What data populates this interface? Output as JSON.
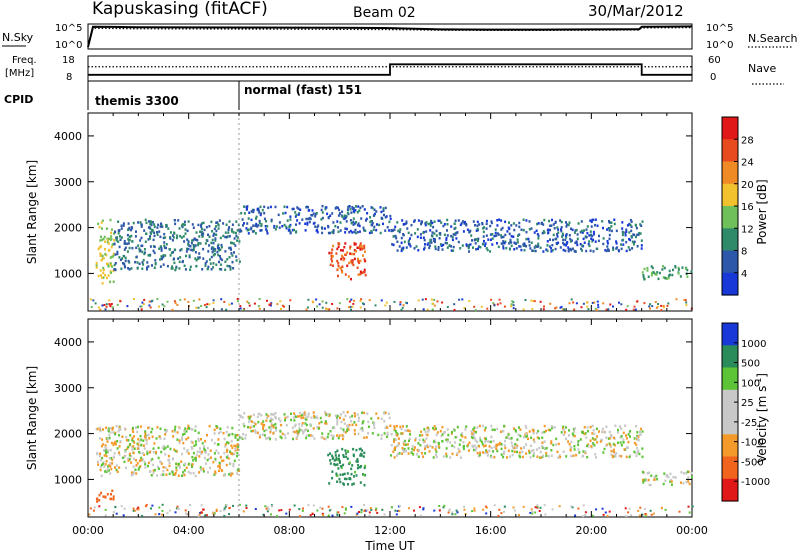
{
  "header": {
    "station": "Kapuskasing (fitACF)",
    "beam": "Beam 02",
    "date": "30/Mar/2012"
  },
  "nsky_panel": {
    "left_label": "N.Sky",
    "right_label": "N.Search",
    "left_ticks": [
      "10^5",
      "10^0"
    ],
    "right_ticks": [
      "10^5",
      "10^0"
    ]
  },
  "freq_panel": {
    "label_line1": "Freq.",
    "label_line2": "[MHz]",
    "left_ticks": [
      "18",
      "8"
    ],
    "right_ticks": [
      "60",
      "0"
    ],
    "right_label": "Nave"
  },
  "cpid_panel": {
    "label": "CPID",
    "modes": [
      {
        "name": "themis 3300",
        "start_hour": 0
      },
      {
        "name": "normal (fast) 151",
        "start_hour": 6
      }
    ]
  },
  "colors": {
    "power_scale": [
      "#1838d8",
      "#2d57a8",
      "#2f8a6a",
      "#6fbf5a",
      "#f2c12e",
      "#f08a24",
      "#e84c1e",
      "#e01818"
    ],
    "velocity_scale": [
      "#e01818",
      "#f0641e",
      "#f39a2a",
      "#c8c8c8",
      "#c8c8c8",
      "#5cc436",
      "#2a8c5a",
      "#1838d8"
    ]
  },
  "chart_data": [
    {
      "type": "line",
      "title": "N.Sky / N.Search",
      "x_unit": "hours UT",
      "x": [
        0,
        0.2,
        1,
        2,
        4,
        6,
        8,
        10,
        12,
        14,
        16,
        18,
        20,
        21.9,
        22,
        23,
        24
      ],
      "series": [
        {
          "name": "N.Sky",
          "values": [
            1,
            200000,
            180000,
            150000,
            140000,
            130000,
            120000,
            110000,
            90000,
            40000,
            35000,
            35000,
            40000,
            45000,
            200000,
            220000,
            250000
          ]
        },
        {
          "name": "N.Search",
          "values": [
            1,
            80000,
            70000,
            60000,
            55000,
            50000,
            45000,
            40000,
            35000,
            25000,
            22000,
            22000,
            25000,
            28000,
            100000,
            110000,
            120000
          ]
        }
      ]
    },
    {
      "type": "line",
      "title": "Freq. [MHz] / Nave",
      "x_unit": "hours UT",
      "ylim": [
        8,
        18
      ],
      "segments_freq": [
        {
          "x0": 0,
          "x1": 12,
          "value": 10
        },
        {
          "x0": 12,
          "x1": 22,
          "value": 15
        },
        {
          "x0": 22,
          "x1": 24,
          "value": 10
        }
      ],
      "nave_level": 35
    },
    {
      "type": "heatmap",
      "title": "Power [dB]",
      "xlabel": "Time UT",
      "ylabel": "Slant Range [km]",
      "xlim": [
        0,
        24
      ],
      "ylim": [
        180,
        4500
      ],
      "x_ticks": [
        "00:00",
        "04:00",
        "08:00",
        "12:00",
        "16:00",
        "20:00",
        "00:00"
      ],
      "y_ticks": [
        1000,
        2000,
        3000,
        4000
      ],
      "colorbar_label": "Power [dB]",
      "colorbar_ticks": [
        4,
        8,
        12,
        16,
        20,
        24,
        28
      ],
      "scatter_bands": [
        {
          "t_start": 0.3,
          "t_end": 1.0,
          "range_low": 800,
          "range_high": 2200,
          "power_db": 16
        },
        {
          "t_start": 1.0,
          "t_end": 6.0,
          "range_low": 1100,
          "range_high": 2200,
          "power_db": 8
        },
        {
          "t_start": 6.0,
          "t_end": 12.0,
          "range_low": 1900,
          "range_high": 2500,
          "power_db": 6
        },
        {
          "t_start": 9.5,
          "t_end": 11.0,
          "range_low": 900,
          "range_high": 1700,
          "power_db": 26
        },
        {
          "t_start": 12.0,
          "t_end": 22.0,
          "range_low": 1500,
          "range_high": 2200,
          "power_db": 6
        },
        {
          "t_start": 22.0,
          "t_end": 24.0,
          "range_low": 900,
          "range_high": 1200,
          "power_db": 12
        }
      ]
    },
    {
      "type": "heatmap",
      "title": "Velocity [m s-1]",
      "xlabel": "Time UT",
      "ylabel": "Slant Range [km]",
      "xlim": [
        0,
        24
      ],
      "ylim": [
        180,
        4500
      ],
      "x_ticks": [
        "00:00",
        "04:00",
        "08:00",
        "12:00",
        "16:00",
        "20:00",
        "00:00"
      ],
      "y_ticks": [
        1000,
        2000,
        3000,
        4000
      ],
      "colorbar_label": "Velocity [m s",
      "colorbar_ticks": [
        1000,
        500,
        100,
        25,
        -25,
        -100,
        -500,
        -1000
      ],
      "scatter_bands": [
        {
          "t_start": 0.3,
          "t_end": 1.0,
          "range_low": 500,
          "range_high": 800,
          "velocity": -400
        },
        {
          "t_start": 0.3,
          "t_end": 6.0,
          "range_low": 1100,
          "range_high": 2200,
          "velocity": 0
        },
        {
          "t_start": 6.0,
          "t_end": 12.0,
          "range_low": 1900,
          "range_high": 2500,
          "velocity": 0
        },
        {
          "t_start": 9.5,
          "t_end": 11.0,
          "range_low": 900,
          "range_high": 1700,
          "velocity": 150
        },
        {
          "t_start": 12.0,
          "t_end": 22.0,
          "range_low": 1500,
          "range_high": 2200,
          "velocity": 0
        },
        {
          "t_start": 22.0,
          "t_end": 24.0,
          "range_low": 900,
          "range_high": 1200,
          "velocity": 0
        }
      ]
    }
  ]
}
